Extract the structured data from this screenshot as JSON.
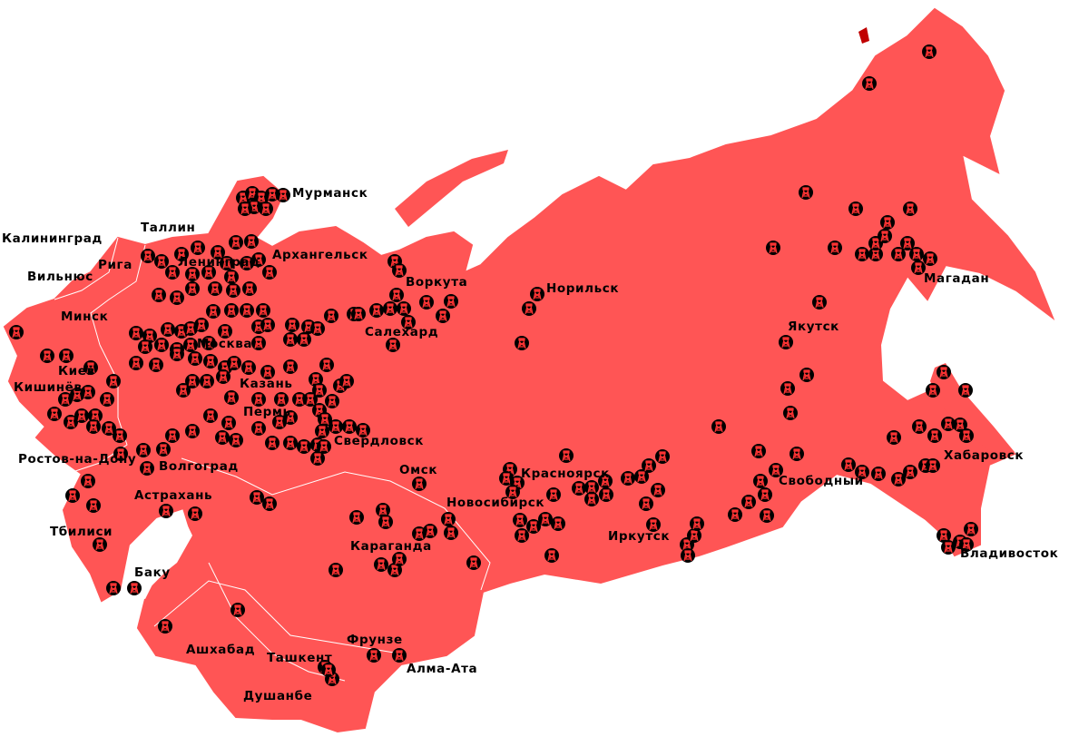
{
  "colors": {
    "land": "#ff5555",
    "island_dark": "#c00000",
    "border": "#ffffff",
    "marker_bg": "#000000",
    "marker_glyph": "#ff3333"
  },
  "marker_icon": "watchtower-icon",
  "cities": [
    "Мурманск",
    "Таллин",
    "Калининград",
    "Рига",
    "Ленинград",
    "Архангельск",
    "Вильнюс",
    "Минск",
    "Воркута",
    "Салехард",
    "Норильск",
    "Москва",
    "Киев",
    "Кишинёв",
    "Казань",
    "Пермь",
    "Свердловск",
    "Ростов-на-Дону",
    "Волгоград",
    "Омск",
    "Астрахань",
    "Новосибирск",
    "Красноярск",
    "Иркутск",
    "Якутск",
    "Магадан",
    "Хабаровск",
    "Свободный",
    "Владивосток",
    "Тбилиси",
    "Баку",
    "Караганда",
    "Ашхабад",
    "Ташкент",
    "Фрунзе",
    "Алма-Ата",
    "Душанбе"
  ]
}
